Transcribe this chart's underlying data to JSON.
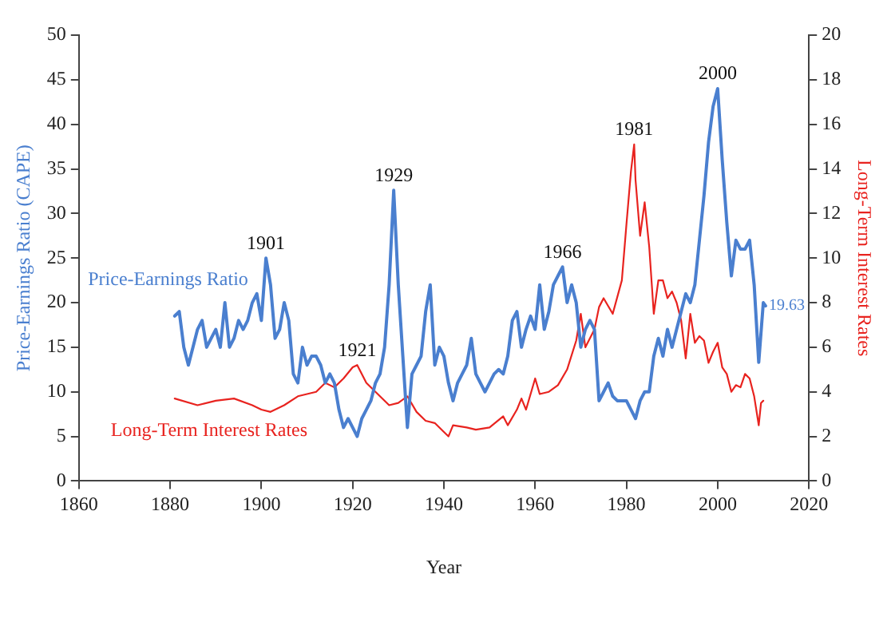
{
  "chart_data": {
    "type": "line",
    "xlabel": "Year",
    "ylabel": "Price-Earnings Ratio (CAPE)",
    "y2label": "Long-Term Interest Rates",
    "xlim": [
      1860,
      2020
    ],
    "xticks": [
      1860,
      1880,
      1900,
      1920,
      1940,
      1960,
      1980,
      2000,
      2020
    ],
    "ylim": [
      0,
      50
    ],
    "yticks": [
      0,
      5,
      10,
      15,
      20,
      25,
      30,
      35,
      40,
      45,
      50
    ],
    "y2lim": [
      0,
      20
    ],
    "y2ticks": [
      0,
      2,
      4,
      6,
      8,
      10,
      12,
      14,
      16,
      18,
      20
    ],
    "grid": false,
    "legend": false,
    "marker": "none",
    "line_style": "solid",
    "series": [
      {
        "name": "Price-Earnings Ratio",
        "color": "#4a7fcf",
        "x": [
          1881,
          1882,
          1883,
          1884,
          1885,
          1886,
          1887,
          1888,
          1889,
          1890,
          1891,
          1892,
          1893,
          1894,
          1895,
          1896,
          1897,
          1898,
          1899,
          1900,
          1901,
          1902,
          1903,
          1904,
          1905,
          1906,
          1907,
          1908,
          1909,
          1910,
          1911,
          1912,
          1913,
          1914,
          1915,
          1916,
          1917,
          1918,
          1919,
          1920,
          1921,
          1922,
          1923,
          1924,
          1925,
          1926,
          1927,
          1928,
          1929,
          1930,
          1931,
          1932,
          1933,
          1934,
          1935,
          1936,
          1937,
          1938,
          1939,
          1940,
          1941,
          1942,
          1943,
          1944,
          1945,
          1946,
          1947,
          1948,
          1949,
          1950,
          1951,
          1952,
          1953,
          1954,
          1955,
          1956,
          1957,
          1958,
          1959,
          1960,
          1961,
          1962,
          1963,
          1964,
          1965,
          1966,
          1967,
          1968,
          1969,
          1970,
          1971,
          1972,
          1973,
          1974,
          1975,
          1976,
          1977,
          1978,
          1979,
          1980,
          1981,
          1982,
          1983,
          1984,
          1985,
          1986,
          1987,
          1988,
          1989,
          1990,
          1991,
          1992,
          1993,
          1994,
          1995,
          1996,
          1997,
          1998,
          1999,
          2000,
          2001,
          2002,
          2003,
          2004,
          2005,
          2006,
          2007,
          2008,
          2009,
          2010,
          2010.5
        ],
        "values": [
          18.5,
          19,
          15,
          13,
          15,
          17,
          18,
          15,
          16,
          17,
          15,
          20,
          15,
          16,
          18,
          17,
          18,
          20,
          21,
          18,
          25,
          22,
          16,
          17,
          20,
          18,
          12,
          11,
          15,
          13,
          14,
          14,
          13,
          11,
          12,
          11,
          8,
          6,
          7,
          6,
          5,
          7,
          8,
          9,
          11,
          12,
          15,
          22,
          32.6,
          22,
          14,
          6,
          12,
          13,
          14,
          19,
          22,
          13,
          15,
          14,
          11,
          9,
          11,
          12,
          13,
          16,
          12,
          11,
          10,
          11,
          12,
          12.5,
          12,
          14,
          18,
          19,
          15,
          17,
          18.5,
          17,
          22,
          17,
          19,
          22,
          23,
          24,
          20,
          22,
          20,
          15,
          17,
          18,
          17,
          9,
          10,
          11,
          9.5,
          9,
          9,
          9,
          8,
          7,
          9,
          10,
          10,
          14,
          16,
          14,
          17,
          15,
          17,
          19,
          21,
          20,
          22,
          27,
          32,
          38,
          42,
          44,
          36,
          29,
          23,
          27,
          26,
          26,
          27,
          22,
          13.3,
          20,
          19.63
        ]
      },
      {
        "name": "Long-Term Interest Rates",
        "color": "#e8231f",
        "axis": "y2",
        "x": [
          1881,
          1886,
          1890,
          1894,
          1898,
          1900,
          1902,
          1905,
          1908,
          1910,
          1912,
          1914,
          1916,
          1918,
          1920,
          1921,
          1923,
          1925,
          1928,
          1930,
          1932,
          1934,
          1936,
          1938,
          1940,
          1941,
          1942,
          1945,
          1947,
          1950,
          1953,
          1954,
          1956,
          1957,
          1958,
          1960,
          1961,
          1963,
          1965,
          1967,
          1969,
          1970,
          1971,
          1973,
          1974,
          1975,
          1977,
          1979,
          1980,
          1981,
          1981.7,
          1982,
          1983,
          1984,
          1985,
          1986,
          1987,
          1988,
          1989,
          1990,
          1991,
          1992,
          1993,
          1994,
          1995,
          1996,
          1997,
          1998,
          1999,
          2000,
          2001,
          2002,
          2003,
          2004,
          2005,
          2006,
          2007,
          2008,
          2009,
          2009.5,
          2010
        ],
        "values": [
          3.7,
          3.4,
          3.6,
          3.7,
          3.4,
          3.2,
          3.1,
          3.4,
          3.8,
          3.9,
          4.0,
          4.4,
          4.2,
          4.6,
          5.1,
          5.2,
          4.4,
          4.0,
          3.4,
          3.5,
          3.8,
          3.1,
          2.7,
          2.6,
          2.2,
          2.0,
          2.5,
          2.4,
          2.3,
          2.4,
          2.9,
          2.5,
          3.2,
          3.7,
          3.2,
          4.6,
          3.9,
          4.0,
          4.3,
          5.0,
          6.3,
          7.5,
          6.0,
          6.8,
          7.8,
          8.2,
          7.5,
          9.0,
          11.5,
          13.9,
          15.1,
          13.5,
          11,
          12.5,
          10.5,
          7.5,
          9.0,
          9,
          8.2,
          8.5,
          8,
          7.2,
          5.5,
          7.5,
          6.2,
          6.5,
          6.3,
          5.3,
          5.8,
          6.2,
          5.1,
          4.8,
          4.0,
          4.3,
          4.2,
          4.8,
          4.6,
          3.8,
          2.5,
          3.5,
          3.6
        ]
      }
    ],
    "annotations": [
      {
        "text": "1901",
        "x": 1901,
        "y": 25
      },
      {
        "text": "1921",
        "x": 1921,
        "y": 13
      },
      {
        "text": "1929",
        "x": 1929,
        "y": 32.6
      },
      {
        "text": "1966",
        "x": 1966,
        "y": 24
      },
      {
        "text": "1981",
        "x": 1981.7,
        "y": 37.8
      },
      {
        "text": "2000",
        "x": 2000,
        "y": 44
      },
      {
        "text": "19.63",
        "x": 2010.5,
        "y": 19.63
      }
    ]
  }
}
